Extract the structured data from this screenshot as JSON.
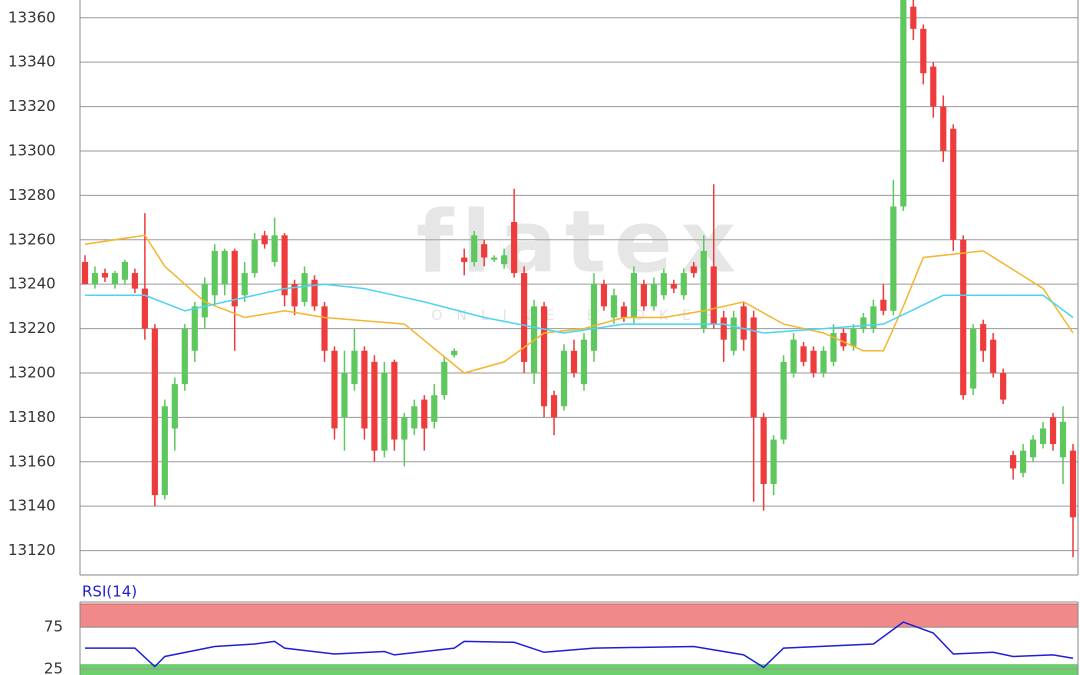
{
  "chart_data": [
    {
      "type": "candlestick",
      "watermark": [
        "flatex",
        "ONLINE BROKER"
      ],
      "xlim": [
        -0.5,
        99.5
      ],
      "ylim": [
        13109,
        13368
      ],
      "yticks": [
        13120,
        13140,
        13160,
        13180,
        13200,
        13220,
        13240,
        13260,
        13280,
        13300,
        13320,
        13340,
        13360
      ],
      "grid": true,
      "up_color": "#5ec85e",
      "down_color": "#ee3b3b",
      "open": [
        13250,
        13240,
        13245,
        13240,
        13242,
        13245,
        13238,
        13220,
        13145,
        13175,
        13195,
        13210,
        13225,
        13235,
        13240,
        13255,
        13235,
        13245,
        13262,
        13250,
        13262,
        13240,
        13232,
        13242,
        13230,
        13210,
        13180,
        13195,
        13210,
        13205,
        13165,
        13205,
        13170,
        13175,
        13188,
        13178,
        13190,
        13208,
        13252,
        13250,
        13258,
        13251,
        13249,
        13268,
        13245,
        13200,
        13230,
        13190,
        13185,
        13210,
        13195,
        13210,
        13240,
        13225,
        13230,
        13225,
        13240,
        13230,
        13235,
        13240,
        13235,
        13248,
        13220,
        13248,
        13225,
        13210,
        13230,
        13225,
        13180,
        13150,
        13170,
        13200,
        13212,
        13210,
        13200,
        13205,
        13218,
        13212,
        13220,
        13220,
        13233,
        13228,
        13275,
        13365,
        13355,
        13338,
        13320,
        13310,
        13260,
        13193,
        13222,
        13215,
        13200,
        13163,
        13155,
        13162,
        13168,
        13180,
        13162,
        13165
      ],
      "high": [
        13253,
        13248,
        13247,
        13246,
        13251,
        13247,
        13272,
        13222,
        13188,
        13198,
        13222,
        13232,
        13243,
        13258,
        13256,
        13256,
        13250,
        13263,
        13264,
        13270,
        13263,
        13242,
        13248,
        13244,
        13232,
        13212,
        13210,
        13220,
        13212,
        13208,
        13205,
        13206,
        13182,
        13188,
        13190,
        13195,
        13207,
        13211,
        13256,
        13264,
        13260,
        13253,
        13256,
        13283,
        13248,
        13233,
        13232,
        13192,
        13213,
        13215,
        13218,
        13245,
        13242,
        13238,
        13232,
        13248,
        13242,
        13243,
        13247,
        13242,
        13247,
        13250,
        13262,
        13285,
        13228,
        13228,
        13232,
        13228,
        13182,
        13172,
        13208,
        13218,
        13214,
        13212,
        13212,
        13222,
        13220,
        13222,
        13227,
        13233,
        13240,
        13287,
        13368,
        13368,
        13357,
        13340,
        13325,
        13312,
        13262,
        13222,
        13224,
        13218,
        13202,
        13165,
        13168,
        13172,
        13178,
        13182,
        13185,
        13168
      ],
      "low": [
        13240,
        13238,
        13241,
        13238,
        13240,
        13236,
        13215,
        13140,
        13143,
        13165,
        13192,
        13205,
        13220,
        13230,
        13235,
        13210,
        13232,
        13243,
        13256,
        13248,
        13230,
        13226,
        13230,
        13228,
        13205,
        13170,
        13165,
        13192,
        13170,
        13160,
        13162,
        13165,
        13158,
        13172,
        13165,
        13175,
        13188,
        13207,
        13244,
        13248,
        13248,
        13250,
        13247,
        13243,
        13200,
        13195,
        13180,
        13172,
        13183,
        13198,
        13192,
        13205,
        13228,
        13222,
        13223,
        13222,
        13228,
        13228,
        13233,
        13236,
        13233,
        13243,
        13218,
        13220,
        13205,
        13208,
        13210,
        13142,
        13138,
        13145,
        13168,
        13198,
        13203,
        13198,
        13198,
        13203,
        13210,
        13210,
        13218,
        13218,
        13226,
        13226,
        13273,
        13350,
        13330,
        13315,
        13295,
        13255,
        13188,
        13190,
        13205,
        13198,
        13186,
        13152,
        13153,
        13160,
        13166,
        13165,
        13150,
        13117
      ],
      "close": [
        13240,
        13245,
        13243,
        13245,
        13250,
        13238,
        13220,
        13145,
        13185,
        13195,
        13220,
        13230,
        13240,
        13255,
        13255,
        13230,
        13245,
        13260,
        13258,
        13262,
        13235,
        13230,
        13245,
        13230,
        13210,
        13175,
        13200,
        13210,
        13175,
        13165,
        13200,
        13170,
        13180,
        13185,
        13175,
        13190,
        13205,
        13210,
        13250,
        13262,
        13252,
        13252,
        13253,
        13245,
        13205,
        13230,
        13185,
        13180,
        13210,
        13200,
        13215,
        13240,
        13230,
        13235,
        13225,
        13245,
        13230,
        13240,
        13245,
        13238,
        13245,
        13245,
        13255,
        13222,
        13215,
        13225,
        13215,
        13180,
        13150,
        13170,
        13205,
        13215,
        13205,
        13200,
        13210,
        13218,
        13212,
        13220,
        13225,
        13230,
        13228,
        13275,
        13368,
        13355,
        13335,
        13320,
        13300,
        13260,
        13190,
        13220,
        13210,
        13200,
        13188,
        13157,
        13165,
        13170,
        13175,
        13168,
        13178,
        13135
      ],
      "overlays": [
        {
          "color": "#f5b52e",
          "x": [
            0,
            6,
            8,
            12,
            16,
            20,
            24,
            32,
            38,
            42,
            46,
            50,
            54,
            58,
            62,
            66,
            70,
            74,
            78,
            80,
            82,
            84,
            90,
            96,
            99
          ],
          "values": [
            13258,
            13262,
            13248,
            13232,
            13225,
            13228,
            13225,
            13222,
            13200,
            13205,
            13218,
            13220,
            13225,
            13225,
            13228,
            13232,
            13222,
            13218,
            13210,
            13210,
            13230,
            13252,
            13255,
            13238,
            13218
          ]
        },
        {
          "color": "#4dd4f2",
          "x": [
            0,
            6,
            10,
            14,
            20,
            24,
            28,
            34,
            40,
            48,
            54,
            60,
            64,
            68,
            74,
            80,
            86,
            92,
            96,
            99
          ],
          "values": [
            13235,
            13235,
            13228,
            13232,
            13238,
            13240,
            13238,
            13232,
            13225,
            13218,
            13222,
            13222,
            13222,
            13218,
            13220,
            13222,
            13235,
            13235,
            13235,
            13225
          ]
        }
      ]
    },
    {
      "type": "line",
      "title": "RSI(14)",
      "xlim": [
        -0.5,
        99.5
      ],
      "ylim": [
        18,
        105
      ],
      "yticks": [
        25,
        75
      ],
      "color": "#1f1fd6",
      "overbought_color": "#f08a8a",
      "oversold_color": "#6cd06c",
      "x": [
        0,
        5,
        7,
        8,
        13,
        17,
        19,
        20,
        25,
        30,
        31,
        37,
        38,
        43,
        46,
        51,
        61,
        66,
        68,
        70,
        79,
        82,
        85,
        87,
        91,
        93,
        97,
        99
      ],
      "values": [
        50,
        50,
        28,
        40,
        52,
        55,
        58,
        50,
        43,
        46,
        42,
        50,
        58,
        57,
        45,
        50,
        52,
        42,
        27,
        50,
        55,
        81,
        68,
        43,
        45,
        40,
        42,
        38
      ]
    }
  ]
}
